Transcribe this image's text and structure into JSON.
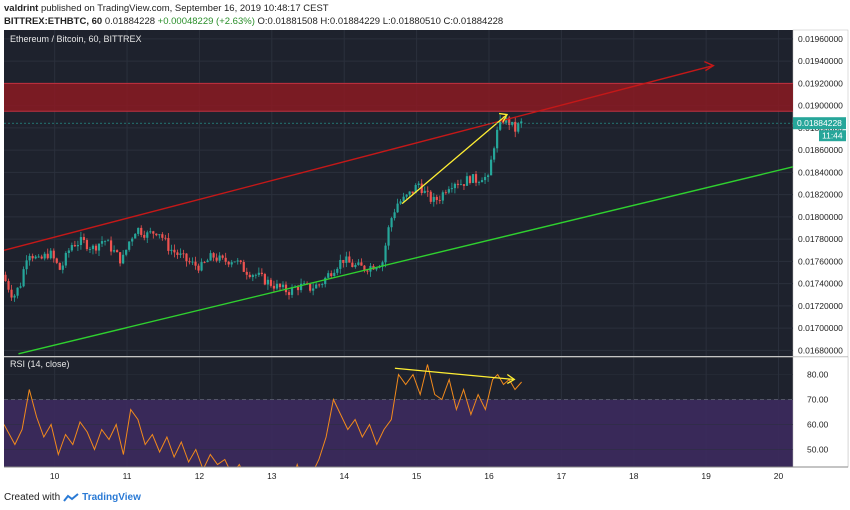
{
  "header": {
    "user": "valdrint",
    "published": "published on TradingView.com, September 16, 2019 10:48:17 CEST",
    "symbol": "BITTREX:ETHBTC, 60",
    "ohlc": "0.01884228",
    "change": "+0.00048229 (+2.63%)",
    "o": "O:0.01881508",
    "h": "H:0.01884229",
    "l": "L:0.01880510",
    "c": "C:0.01884228"
  },
  "footer": {
    "created": "Created with",
    "brand": "TradingView"
  },
  "colors": {
    "background": "#1e222d",
    "up": "#26a69a",
    "down": "#ef5350",
    "resistance_zone": "#8b1a22",
    "upper_trendline": "#c41818",
    "lower_trendline": "#2fd02f",
    "highlight_arrow": "#ffee33",
    "rsi_line": "#f28a1c",
    "rsi_band": "#3c2a5e"
  },
  "chart_data": [
    {
      "type": "candlestick",
      "title": "Ethereum / Bitcoin, 60, BITTREX",
      "x_ticks": [
        "10",
        "11",
        "12",
        "13",
        "14",
        "15",
        "16",
        "17",
        "18",
        "19",
        "20"
      ],
      "x_range": [
        9.3,
        20.2
      ],
      "y_ticks": [
        "0.01680000",
        "0.01700000",
        "0.01720000",
        "0.01740000",
        "0.01760000",
        "0.01780000",
        "0.01800000",
        "0.01820000",
        "0.01840000",
        "0.01860000",
        "0.01880000",
        "0.01900000",
        "0.01920000",
        "0.01940000",
        "0.01960000"
      ],
      "ylim": [
        0.01675,
        0.01968
      ],
      "last_price": "0.01884228",
      "countdown": "11:44",
      "resistance_zone": [
        0.01895,
        0.0192
      ],
      "upper_trendline": {
        "from": [
          9.3,
          0.0177
        ],
        "to": [
          19.1,
          0.01936
        ]
      },
      "lower_trendline": {
        "from": [
          9.5,
          0.01677
        ],
        "to": [
          20.2,
          0.01845
        ]
      },
      "price_arrow": {
        "from": [
          14.8,
          0.01812
        ],
        "to": [
          16.25,
          0.01892
        ]
      },
      "price_path": [
        [
          9.3,
          0.01748
        ],
        [
          9.45,
          0.01728
        ],
        [
          9.55,
          0.0174
        ],
        [
          9.65,
          0.0177
        ],
        [
          9.8,
          0.0176
        ],
        [
          9.95,
          0.01768
        ],
        [
          10.1,
          0.01752
        ],
        [
          10.25,
          0.01775
        ],
        [
          10.4,
          0.01778
        ],
        [
          10.55,
          0.01772
        ],
        [
          10.7,
          0.0178
        ],
        [
          10.85,
          0.01768
        ],
        [
          10.95,
          0.0176
        ],
        [
          11.05,
          0.01778
        ],
        [
          11.15,
          0.0179
        ],
        [
          11.3,
          0.01784
        ],
        [
          11.45,
          0.01788
        ],
        [
          11.6,
          0.01772
        ],
        [
          11.75,
          0.01765
        ],
        [
          11.9,
          0.01758
        ],
        [
          12.05,
          0.01755
        ],
        [
          12.2,
          0.01765
        ],
        [
          12.35,
          0.0176
        ],
        [
          12.5,
          0.01762
        ],
        [
          12.65,
          0.01752
        ],
        [
          12.8,
          0.01748
        ],
        [
          12.95,
          0.01742
        ],
        [
          13.1,
          0.01737
        ],
        [
          13.25,
          0.01733
        ],
        [
          13.4,
          0.01738
        ],
        [
          13.55,
          0.01736
        ],
        [
          13.7,
          0.0174
        ],
        [
          13.85,
          0.01752
        ],
        [
          14.0,
          0.01762
        ],
        [
          14.15,
          0.01756
        ],
        [
          14.3,
          0.01754
        ],
        [
          14.45,
          0.01757
        ],
        [
          14.55,
          0.0176
        ],
        [
          14.65,
          0.01795
        ],
        [
          14.75,
          0.01812
        ],
        [
          14.85,
          0.01816
        ],
        [
          14.95,
          0.01822
        ],
        [
          15.05,
          0.0183
        ],
        [
          15.15,
          0.0182
        ],
        [
          15.25,
          0.01814
        ],
        [
          15.35,
          0.01818
        ],
        [
          15.45,
          0.01828
        ],
        [
          15.55,
          0.01832
        ],
        [
          15.65,
          0.0183
        ],
        [
          15.75,
          0.01835
        ],
        [
          15.85,
          0.01833
        ],
        [
          15.95,
          0.01838
        ],
        [
          16.0,
          0.0183
        ],
        [
          16.05,
          0.0185
        ],
        [
          16.1,
          0.01868
        ],
        [
          16.15,
          0.0188
        ],
        [
          16.22,
          0.01888
        ],
        [
          16.3,
          0.01885
        ],
        [
          16.38,
          0.01878
        ],
        [
          16.45,
          0.01884
        ]
      ]
    },
    {
      "type": "line",
      "title": "RSI (14, close)",
      "y_ticks": [
        "50.00",
        "60.00",
        "70.00",
        "80.00"
      ],
      "ylim": [
        43,
        87
      ],
      "overbought_band": [
        30,
        70
      ],
      "rsi_arrow": {
        "from": [
          14.7,
          82.5
        ],
        "to": [
          16.35,
          78
        ]
      },
      "x": [
        9.3,
        9.45,
        9.55,
        9.65,
        9.75,
        9.85,
        9.95,
        10.05,
        10.15,
        10.25,
        10.35,
        10.45,
        10.55,
        10.65,
        10.75,
        10.85,
        10.95,
        11.05,
        11.15,
        11.25,
        11.35,
        11.45,
        11.55,
        11.65,
        11.75,
        11.85,
        11.95,
        12.05,
        12.15,
        12.25,
        12.35,
        12.45,
        12.55,
        12.65,
        12.75,
        12.85,
        12.95,
        13.05,
        13.15,
        13.25,
        13.35,
        13.45,
        13.55,
        13.65,
        13.75,
        13.85,
        13.95,
        14.05,
        14.15,
        14.25,
        14.35,
        14.45,
        14.55,
        14.65,
        14.75,
        14.85,
        14.95,
        15.05,
        15.15,
        15.25,
        15.35,
        15.45,
        15.55,
        15.65,
        15.75,
        15.85,
        15.95,
        16.05,
        16.12,
        16.2,
        16.28,
        16.36,
        16.45
      ],
      "values": [
        60,
        52,
        58,
        74,
        63,
        55,
        60,
        48,
        56,
        52,
        61,
        57,
        50,
        58,
        54,
        60,
        48,
        66,
        62,
        52,
        56,
        49,
        55,
        47,
        53,
        45,
        50,
        42,
        48,
        44,
        46,
        40,
        44,
        38,
        42,
        36,
        40,
        35,
        38,
        34,
        44,
        36,
        40,
        46,
        55,
        70,
        64,
        58,
        62,
        55,
        60,
        52,
        58,
        62,
        80,
        76,
        80,
        72,
        84,
        72,
        70,
        78,
        66,
        74,
        64,
        72,
        66,
        78,
        80,
        76,
        78,
        74,
        77
      ]
    }
  ]
}
